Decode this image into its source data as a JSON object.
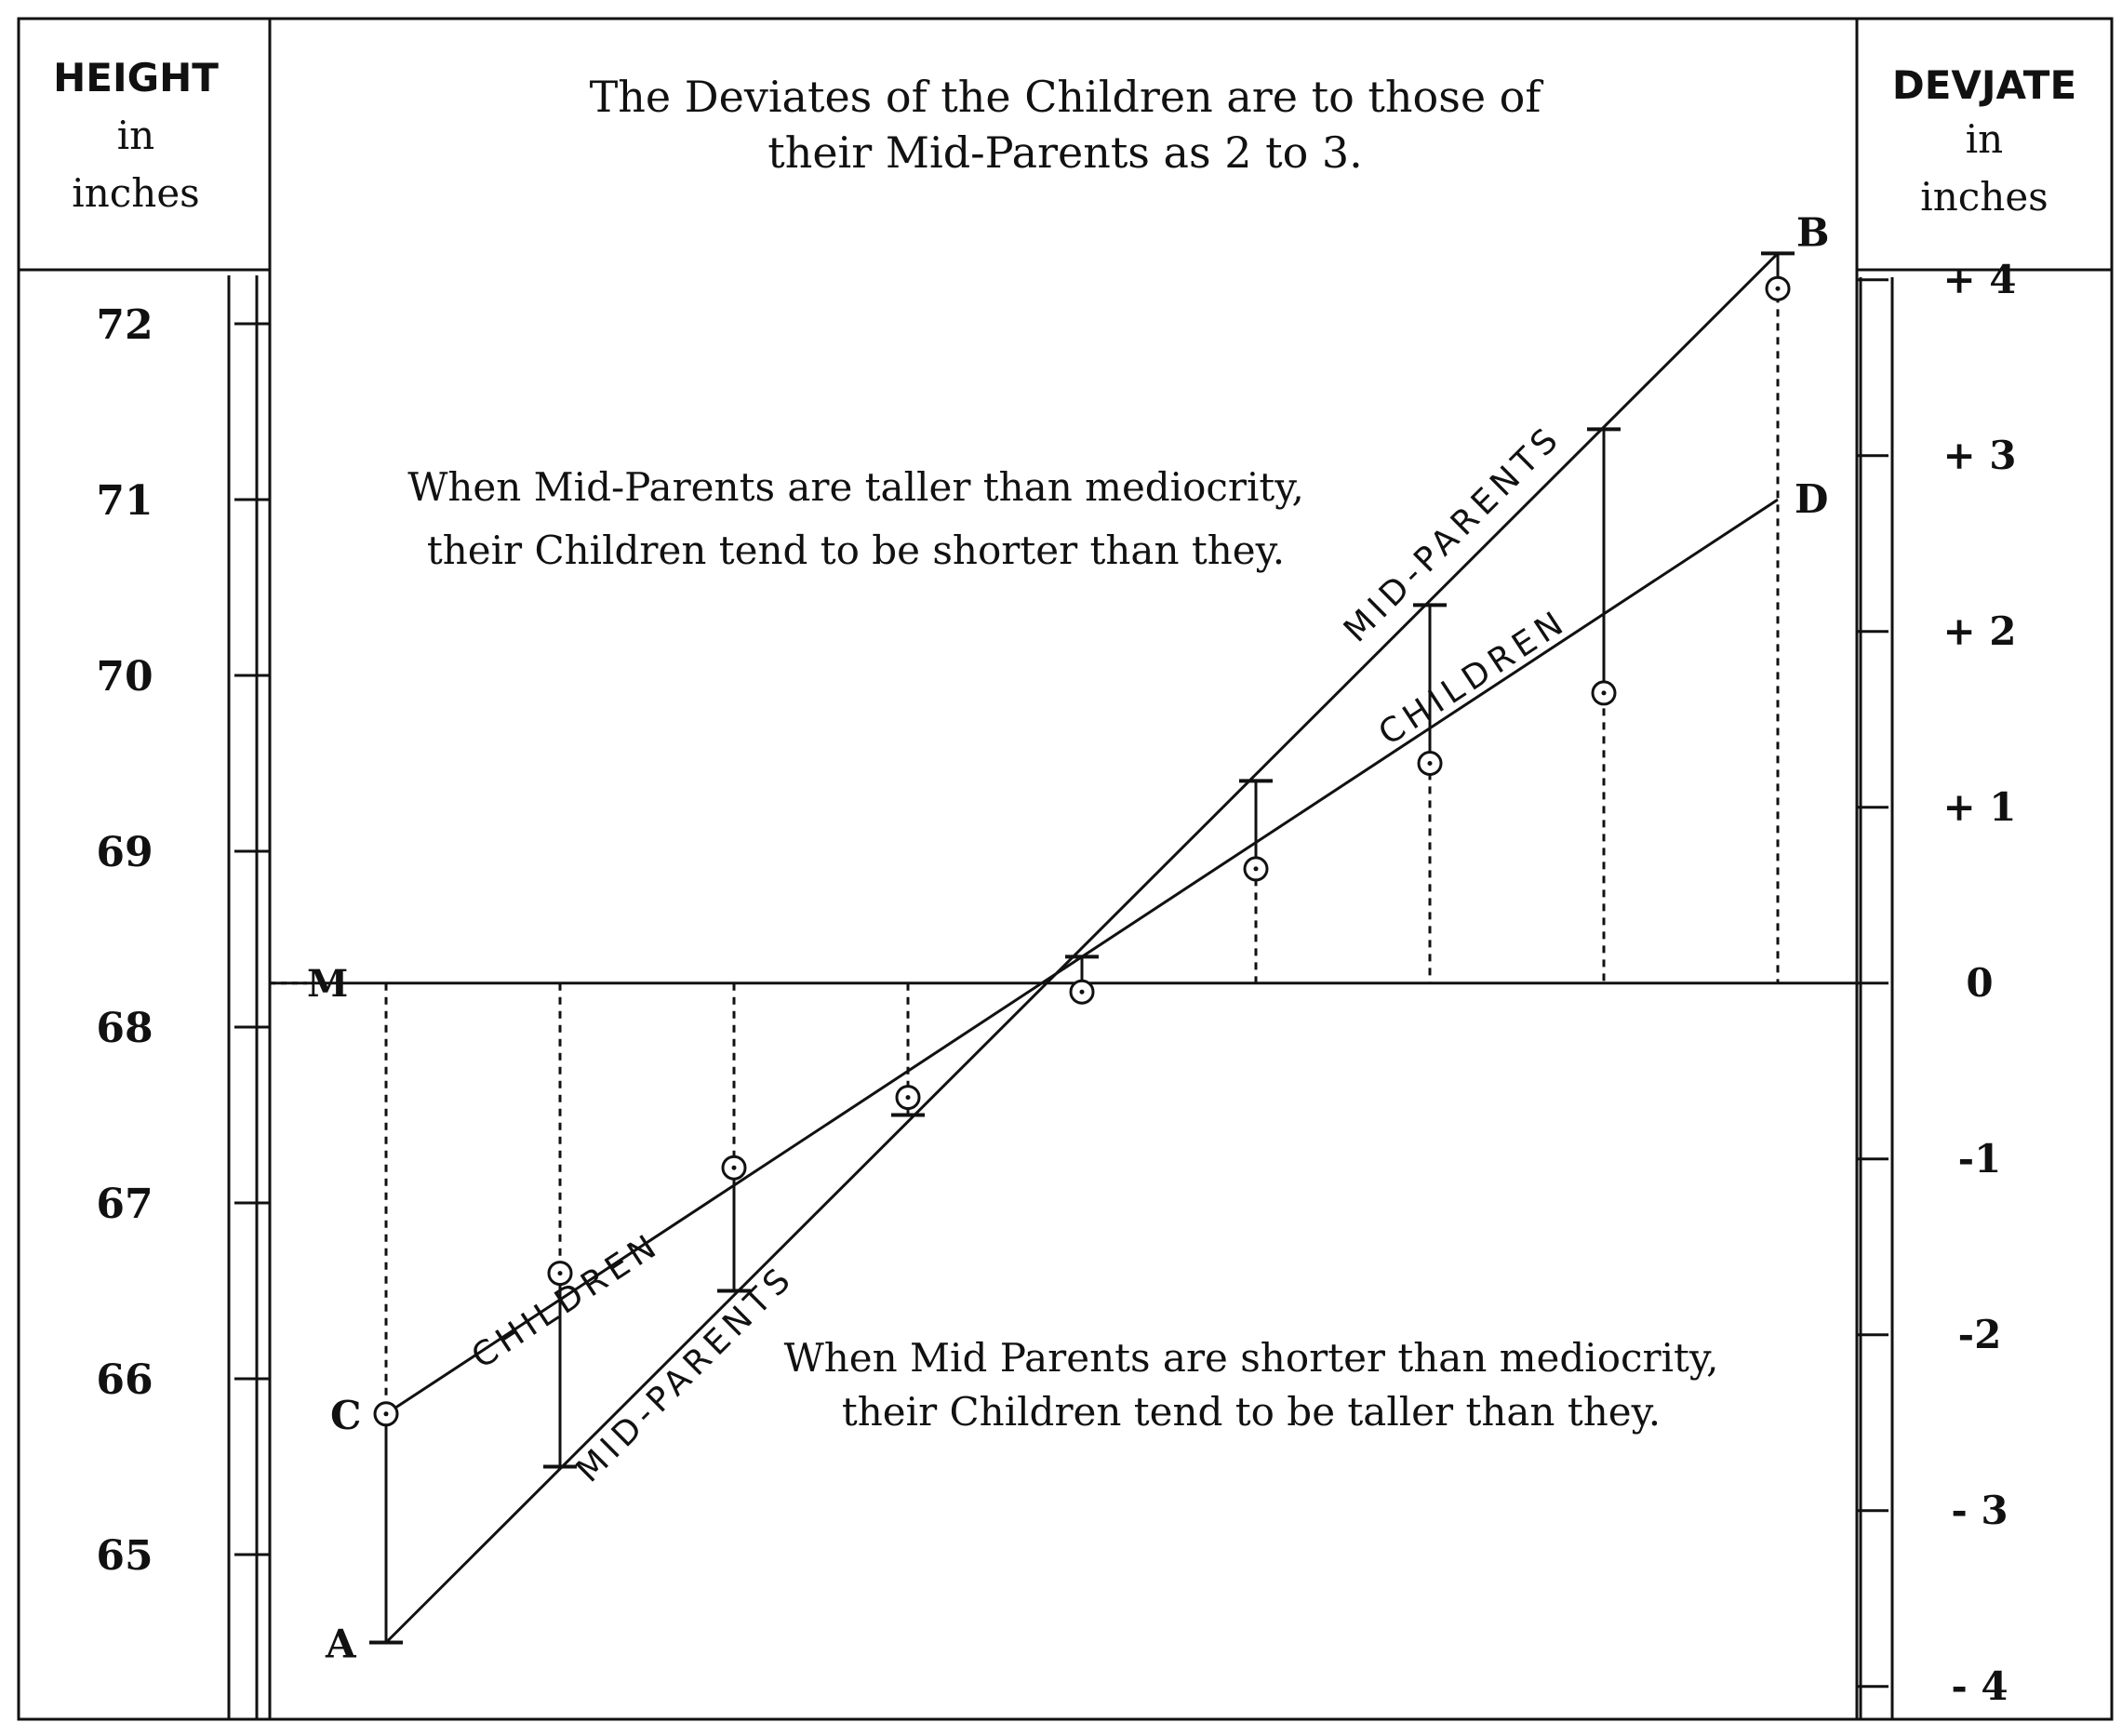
{
  "chart_data": {
    "type": "line",
    "title": [
      "The Deviates of the Children are to those of",
      "their Mid-Parents as 2 to 3."
    ],
    "left_axis": {
      "header": [
        "HEIGHT",
        "in",
        "inches"
      ],
      "ticks": [
        72,
        71,
        70,
        69,
        68,
        67,
        66,
        65
      ],
      "range": [
        64.25,
        72.25
      ]
    },
    "right_axis": {
      "header": [
        "DEVJATE",
        "in",
        "inches"
      ],
      "ticks": [
        {
          "value": 4,
          "label": "+ 4"
        },
        {
          "value": 3,
          "label": "+ 3"
        },
        {
          "value": 2,
          "label": "+ 2"
        },
        {
          "value": 1,
          "label": "+ 1"
        },
        {
          "value": 0,
          "label": "0"
        },
        {
          "value": -1,
          "label": "-1"
        },
        {
          "value": -2,
          "label": "-2"
        },
        {
          "value": -3,
          "label": "- 3"
        },
        {
          "value": -4,
          "label": "- 4"
        }
      ]
    },
    "mediocrity": 68.25,
    "x_groups": 9,
    "series": [
      {
        "name": "MID-PARENTS",
        "values": [
          64.5,
          65.5,
          66.5,
          67.5,
          68.4,
          69.4,
          70.4,
          71.4,
          72.4
        ]
      },
      {
        "name": "CHILDREN",
        "values": [
          65.8,
          66.6,
          67.2,
          67.6,
          68.2,
          68.9,
          69.5,
          69.9,
          72.2
        ]
      }
    ],
    "fitted_lines": [
      {
        "name": "MID-PARENTS",
        "start": 64.5,
        "end": 72.4
      },
      {
        "name": "CHILDREN",
        "start": 65.8,
        "end": 71.0
      }
    ],
    "point_labels": {
      "A": "A",
      "B": "B",
      "C": "C",
      "D": "D",
      "M": "M"
    },
    "line_labels": {
      "mid_parents": "MID-PARENTS",
      "children": "CHILDREN"
    },
    "annotations": {
      "upper": [
        "When Mid-Parents are taller than mediocrity,",
        "their Children tend to be shorter than they."
      ],
      "lower": [
        "When Mid Parents are shorter than mediocrity,",
        "their Children tend to be taller than they."
      ]
    }
  }
}
